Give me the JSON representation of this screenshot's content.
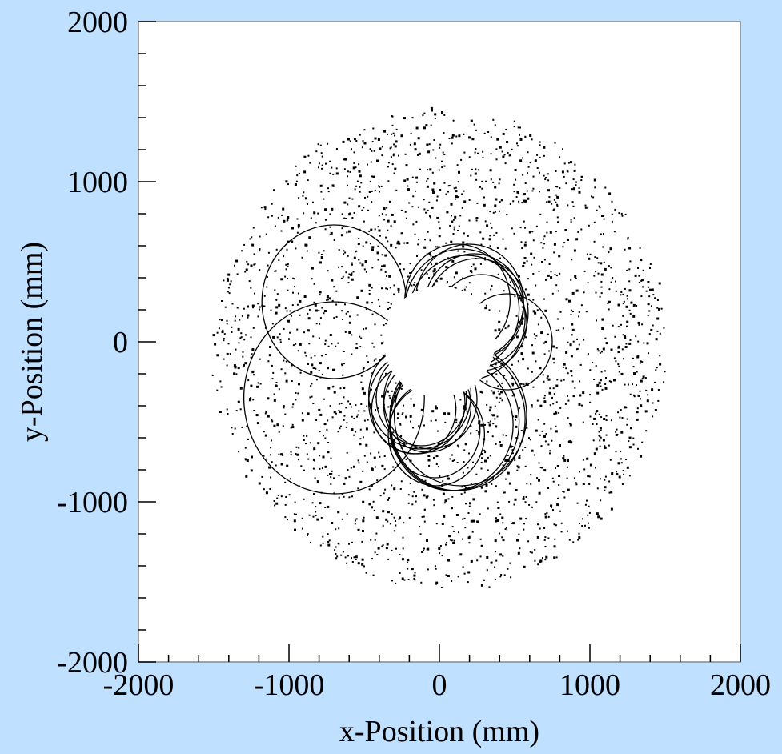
{
  "chart_data": {
    "type": "scatter",
    "title": "",
    "xlabel": "x-Position (mm)",
    "ylabel": "y-Position (mm)",
    "xlim": [
      -2000,
      2000
    ],
    "ylim": [
      -2000,
      2000
    ],
    "xticks": [
      -2000,
      -1000,
      0,
      1000,
      2000
    ],
    "yticks": [
      -2000,
      -1000,
      0,
      1000,
      2000
    ],
    "xtick_labels": [
      "-2000",
      "-1000",
      "0",
      "1000",
      "2000"
    ],
    "ytick_labels": [
      "-2000",
      "-1000",
      "0",
      "1000",
      "2000"
    ],
    "grid": false,
    "legend": "none",
    "colors": {
      "background": "#bfe0ff",
      "plot_area": "#ffffff",
      "marks": "#000000"
    },
    "distribution": {
      "description_units": "mm",
      "inner_empty_disk": {
        "center": [
          0,
          0
        ],
        "radius": 370
      },
      "scatter_annulus": {
        "center": [
          0,
          -50
        ],
        "inner_radius": 350,
        "outer_radius": 1500,
        "approx_points": 2400
      }
    },
    "series": [
      {
        "type": "curves",
        "tracks": [
          {
            "cx": 150,
            "cy": 200,
            "r": 380
          },
          {
            "cx": 200,
            "cy": 250,
            "r": 360
          },
          {
            "cx": 250,
            "cy": 180,
            "r": 340
          },
          {
            "cx": 180,
            "cy": 150,
            "r": 390
          },
          {
            "cx": 230,
            "cy": 220,
            "r": 330
          },
          {
            "cx": 120,
            "cy": 260,
            "r": 350
          },
          {
            "cx": 280,
            "cy": 120,
            "r": 300
          },
          {
            "cx": -120,
            "cy": -350,
            "r": 300
          },
          {
            "cx": -150,
            "cy": -380,
            "r": 320
          },
          {
            "cx": -80,
            "cy": -400,
            "r": 290
          },
          {
            "cx": -130,
            "cy": -330,
            "r": 340
          },
          {
            "cx": -60,
            "cy": -360,
            "r": 310
          },
          {
            "cx": -170,
            "cy": -420,
            "r": 280
          },
          {
            "cx": 100,
            "cy": -500,
            "r": 430
          },
          {
            "cx": 120,
            "cy": -480,
            "r": 450
          },
          {
            "cx": 80,
            "cy": -520,
            "r": 410
          },
          {
            "cx": 140,
            "cy": -460,
            "r": 440
          },
          {
            "cx": -30,
            "cy": -550,
            "r": 300
          },
          {
            "cx": -20,
            "cy": -580,
            "r": 320
          },
          {
            "cx": -700,
            "cy": -350,
            "r": 600
          },
          {
            "cx": -700,
            "cy": 250,
            "r": 480
          },
          {
            "cx": 450,
            "cy": 0,
            "r": 300
          }
        ]
      }
    ]
  }
}
